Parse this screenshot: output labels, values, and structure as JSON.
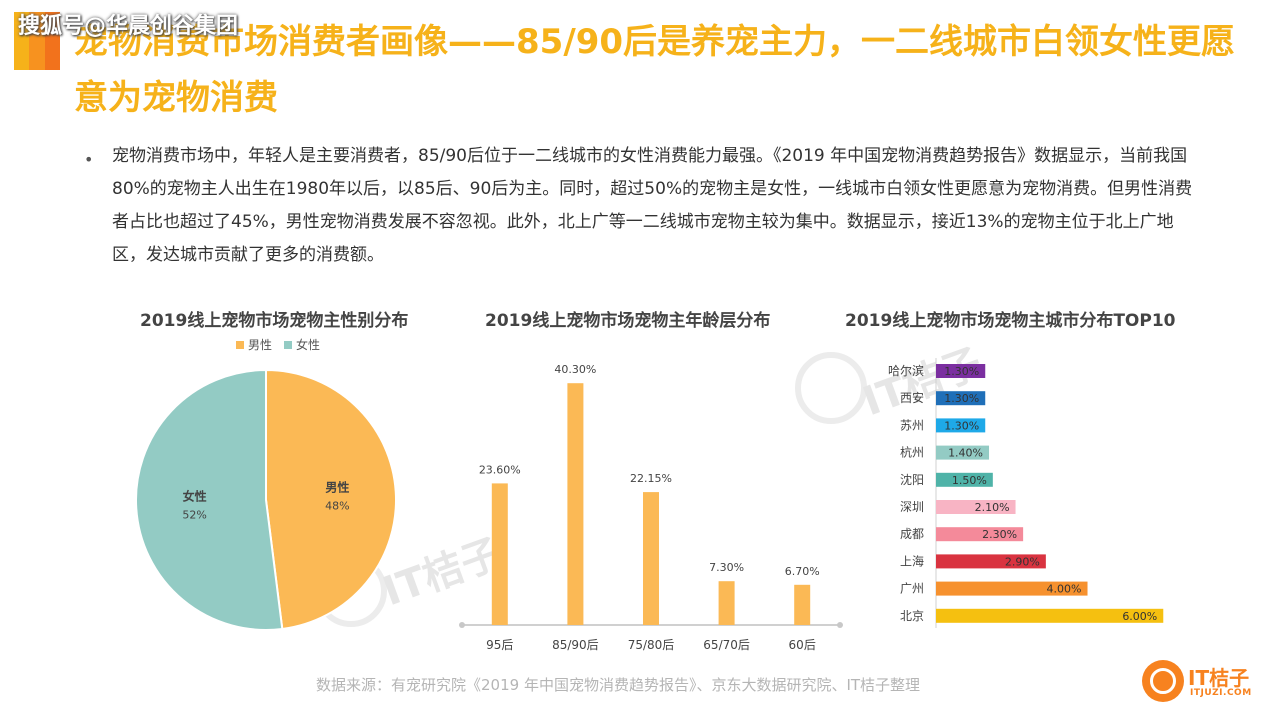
{
  "watermark": "搜狐号@华晨创谷集团",
  "title": "宠物消费市场消费者画像——85/90后是养宠主力，一二线城市白领女性更愿意为宠物消费",
  "bullet": "•",
  "body": "宠物消费市场中，年轻人是主要消费者，85/90后位于一二线城市的女性消费能力最强。《2019 年中国宠物消费趋势报告》数据显示，当前我国 80%的宠物主人出生在1980年以后，以85后、90后为主。同时，超过50%的宠物主是女性，一线城市白领女性更愿意为宠物消费。但男性消费者占比也超过了45%，男性宠物消费发展不容忽视。此外，北上广等一二线城市宠物主较为集中。数据显示，接近13%的宠物主位于北上广地区，发达城市贡献了更多的消费额。",
  "source": "数据来源：有宠研究院《2019 年中国宠物消费趋势报告》、京东大数据研究院、IT桔子整理",
  "logo": {
    "name": "IT桔子",
    "sub": "ITJUZI.COM"
  },
  "bg_watermark": {
    "text": "IT桔子",
    "sub": "ITJUZI.COM"
  },
  "colors": {
    "accent": "#f6b21a",
    "male": "#fbb955",
    "female": "#93cbc4"
  },
  "chart_data": [
    {
      "type": "pie",
      "title": "2019线上宠物市场宠物主性别分布",
      "legend_position": "top",
      "slices": [
        {
          "name": "男性",
          "value": 48,
          "label": "48%",
          "color": "#fbb955"
        },
        {
          "name": "女性",
          "value": 52,
          "label": "52%",
          "color": "#93cbc4"
        }
      ]
    },
    {
      "type": "bar",
      "title": "2019线上宠物市场宠物主年龄层分布",
      "categories": [
        "95后",
        "85/90后",
        "75/80后",
        "65/70后",
        "60后"
      ],
      "values": [
        23.6,
        40.3,
        22.15,
        7.3,
        6.7
      ],
      "labels": [
        "23.60%",
        "40.30%",
        "22.15%",
        "7.30%",
        "6.70%"
      ],
      "ylim": [
        0,
        45
      ],
      "color": "#fbb955",
      "grid": false
    },
    {
      "type": "bar",
      "orientation": "horizontal",
      "title": "2019线上宠物市场宠物主城市分布TOP10",
      "categories": [
        "哈尔滨",
        "西安",
        "苏州",
        "杭州",
        "沈阳",
        "深圳",
        "成都",
        "上海",
        "广州",
        "北京"
      ],
      "values": [
        1.3,
        1.3,
        1.3,
        1.4,
        1.5,
        2.1,
        2.3,
        2.9,
        4.0,
        6.0
      ],
      "labels": [
        "1.30%",
        "1.30%",
        "1.30%",
        "1.40%",
        "1.50%",
        "2.10%",
        "2.30%",
        "2.90%",
        "4.00%",
        "6.00%"
      ],
      "colors": [
        "#7b2fa0",
        "#1f6fb8",
        "#1ea9e8",
        "#93cbc4",
        "#4fb3a8",
        "#f8b4c4",
        "#f48a9a",
        "#d93340",
        "#f6912e",
        "#f5c010"
      ],
      "xlim": [
        0,
        6.6
      ]
    }
  ]
}
